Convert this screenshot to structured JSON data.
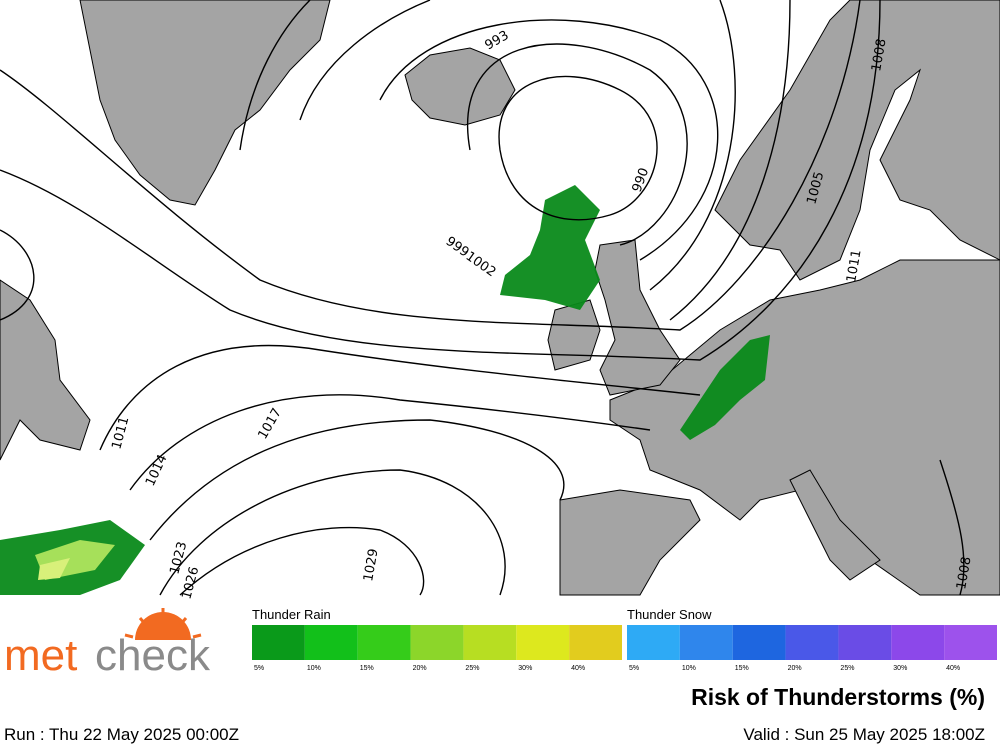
{
  "map": {
    "isobar_labels": [
      "993",
      "990",
      "999",
      "1002",
      "1005",
      "1008",
      "1011",
      "1011",
      "1014",
      "1017",
      "1023",
      "1026",
      "1029",
      "1008"
    ]
  },
  "logo": {
    "part1": "met",
    "part2": "check"
  },
  "legend": {
    "thunder_rain": {
      "title": "Thunder Rain",
      "labels": [
        "5%",
        "10%",
        "15%",
        "20%",
        "25%",
        "30%",
        "40%"
      ],
      "colors": [
        "#0a9a1a",
        "#12c01a",
        "#35cc1a",
        "#8cd62a",
        "#b7de22",
        "#dde81e",
        "#e2cc1e"
      ]
    },
    "thunder_snow": {
      "title": "Thunder Snow",
      "labels": [
        "5%",
        "10%",
        "15%",
        "20%",
        "25%",
        "30%",
        "40%"
      ],
      "colors": [
        "#2eaaf5",
        "#2f86ec",
        "#1e66e0",
        "#4a58e8",
        "#6a4ce6",
        "#8c48ea",
        "#9d52ec"
      ]
    }
  },
  "title": "Risk of Thunderstorms (%)",
  "run": "Run : Thu 22 May 2025 00:00Z",
  "valid": "Valid : Sun 25 May 2025 18:00Z"
}
